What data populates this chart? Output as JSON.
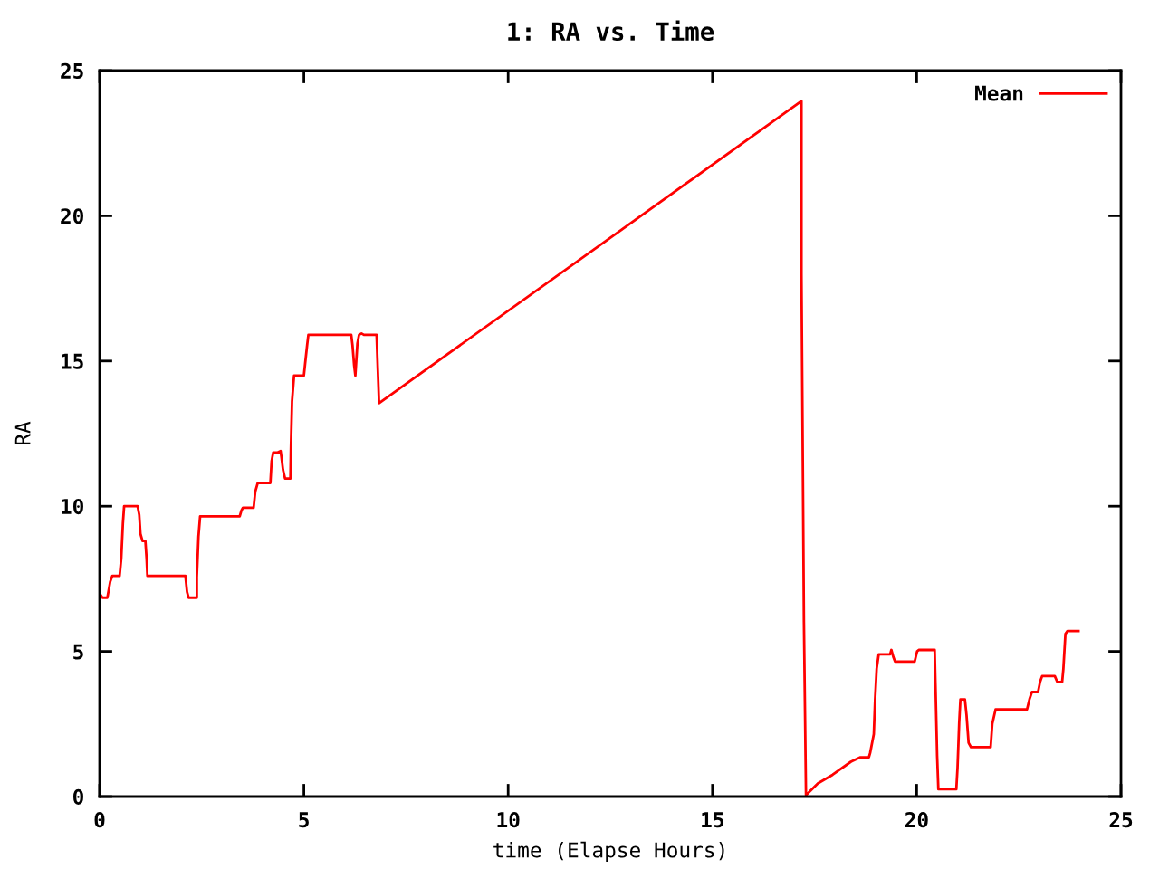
{
  "chart_data": {
    "type": "line",
    "title": "1: RA vs. Time",
    "xlabel": "time (Elapse Hours)",
    "ylabel": "RA",
    "xlim": [
      0,
      25
    ],
    "ylim": [
      0,
      25
    ],
    "xticks": [
      0,
      5,
      10,
      15,
      20,
      25
    ],
    "yticks": [
      0,
      5,
      10,
      15,
      20,
      25
    ],
    "grid": false,
    "legend": "top right",
    "marker": "none",
    "line_style": "solid",
    "series": [
      {
        "name": "Mean",
        "color": "#ff0000",
        "x": [
          0.0,
          0.07,
          0.19,
          0.26,
          0.31,
          0.49,
          0.53,
          0.57,
          0.6,
          0.93,
          0.97,
          1.0,
          1.05,
          1.12,
          1.15,
          1.17,
          2.1,
          2.14,
          2.18,
          2.38,
          2.38,
          2.42,
          2.46,
          3.43,
          3.47,
          3.51,
          3.77,
          3.81,
          3.87,
          4.18,
          4.21,
          4.25,
          4.36,
          4.43,
          4.45,
          4.49,
          4.54,
          4.67,
          4.68,
          4.71,
          4.76,
          5.0,
          5.03,
          5.08,
          5.11,
          6.16,
          6.19,
          6.23,
          6.26,
          6.31,
          6.35,
          6.41,
          6.47,
          6.78,
          6.81,
          6.84,
          17.18,
          17.18,
          17.24,
          17.29,
          17.58,
          17.94,
          18.39,
          18.61,
          18.83,
          18.86,
          18.95,
          18.98,
          19.02,
          19.07,
          19.35,
          19.38,
          19.43,
          19.47,
          19.95,
          20.01,
          20.05,
          20.44,
          20.46,
          20.5,
          20.53,
          20.97,
          21.0,
          21.04,
          21.07,
          21.18,
          21.22,
          21.27,
          21.33,
          21.81,
          21.85,
          21.93,
          22.7,
          22.76,
          22.82,
          22.97,
          23.02,
          23.07,
          23.38,
          23.44,
          23.56,
          23.59,
          23.64,
          23.69,
          23.96
        ],
        "values": [
          7.0,
          6.85,
          6.85,
          7.4,
          7.6,
          7.6,
          8.2,
          9.4,
          10.0,
          10.0,
          9.7,
          9.05,
          8.8,
          8.8,
          8.2,
          7.6,
          7.6,
          7.05,
          6.85,
          6.85,
          7.55,
          8.95,
          9.65,
          9.65,
          9.85,
          9.95,
          9.95,
          10.5,
          10.8,
          10.8,
          11.55,
          11.85,
          11.85,
          11.9,
          11.7,
          11.25,
          10.95,
          10.95,
          11.9,
          13.6,
          14.5,
          14.5,
          14.9,
          15.55,
          15.9,
          15.9,
          15.55,
          14.85,
          14.5,
          15.6,
          15.9,
          15.95,
          15.9,
          15.9,
          14.7,
          13.55,
          23.95,
          18.0,
          6.0,
          0.05,
          0.45,
          0.75,
          1.2,
          1.35,
          1.35,
          1.5,
          2.15,
          3.3,
          4.4,
          4.9,
          4.9,
          5.05,
          4.8,
          4.65,
          4.65,
          5.0,
          5.05,
          5.05,
          3.85,
          1.4,
          0.25,
          0.25,
          1.0,
          2.55,
          3.35,
          3.35,
          2.8,
          1.85,
          1.7,
          1.7,
          2.5,
          3.0,
          3.0,
          3.35,
          3.6,
          3.6,
          3.95,
          4.15,
          4.15,
          3.95,
          3.95,
          4.4,
          5.6,
          5.7,
          5.7
        ]
      }
    ]
  }
}
